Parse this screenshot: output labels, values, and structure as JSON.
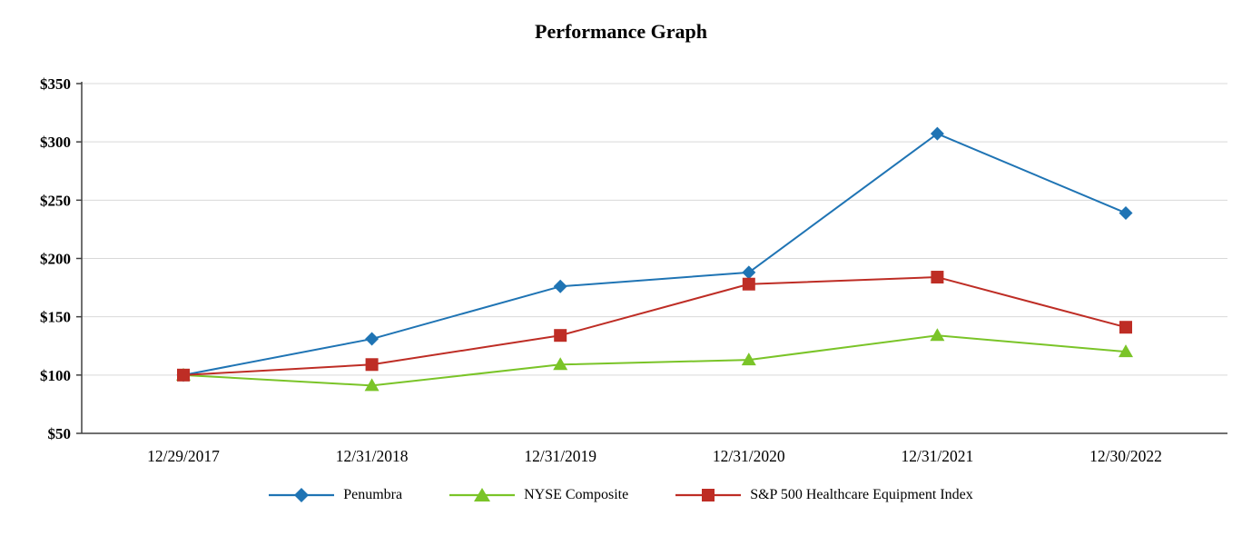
{
  "chart_data": {
    "type": "line",
    "title": "Performance Graph",
    "categories": [
      "12/29/2017",
      "12/31/2018",
      "12/31/2019",
      "12/31/2020",
      "12/31/2021",
      "12/30/2022"
    ],
    "series": [
      {
        "name": "Penumbra",
        "marker": "diamond",
        "color": "#1F74B4",
        "values": [
          100,
          131,
          176,
          188,
          307,
          239
        ]
      },
      {
        "name": "NYSE Composite",
        "marker": "triangle",
        "color": "#7AC428",
        "values": [
          100,
          91,
          109,
          113,
          134,
          120
        ]
      },
      {
        "name": "S&P 500 Healthcare Equipment Index",
        "marker": "square",
        "color": "#BE2D25",
        "values": [
          100,
          109,
          134,
          178,
          184,
          141
        ]
      }
    ],
    "xlabel": "",
    "ylabel": "",
    "ylim": [
      50,
      350
    ],
    "yticks": [
      50,
      100,
      150,
      200,
      250,
      300,
      350
    ],
    "ytick_labels": [
      "$50",
      "$100",
      "$150",
      "$200",
      "$250",
      "$300",
      "$350"
    ],
    "grid": true,
    "grid_color": "#D9D9D9",
    "axis_color": "#404040",
    "legend_position": "bottom"
  }
}
